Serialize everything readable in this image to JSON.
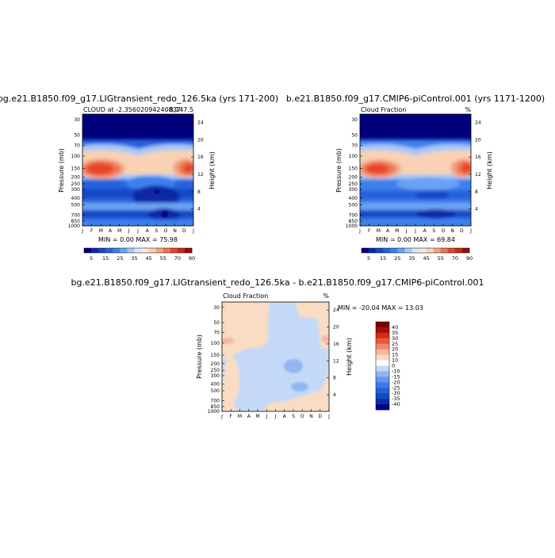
{
  "colors": {
    "scale": [
      "#00007d",
      "#0d2aa6",
      "#1648c7",
      "#2662de",
      "#3d80ed",
      "#6aa2f4",
      "#a7c8f7",
      "#d9e7fa",
      "#f6ecdc",
      "#f8d2b4",
      "#f4a682",
      "#ef7454",
      "#e5452b",
      "#cc2714",
      "#990c0c"
    ],
    "diff_scale": [
      "#00008b",
      "#0a2fa5",
      "#1448c2",
      "#2561d8",
      "#3d7ae8",
      "#6396f0",
      "#93b6f3",
      "#c4d9f7",
      "#ffffff",
      "#f8dcc4",
      "#f6b7a0",
      "#f18a6b",
      "#ea5a3a",
      "#d92c12",
      "#a80b0b",
      "#7a0000"
    ]
  },
  "chart_data": [
    {
      "type": "heatmap",
      "title": "bg.e21.B1850.f09_g17.LIGtransient_redo_126.5ka (yrs 171-200)",
      "subtitle_left": "CLOUD at -2.35602094240837",
      "subtitle_right": "8,147.5",
      "stats": "MIN =    0.00 MAX =   75.98",
      "x_ticks": [
        "J",
        "F",
        "M",
        "A",
        "M",
        "J",
        "J",
        "A",
        "S",
        "O",
        "N",
        "D",
        "J"
      ],
      "y_ticks": [
        "30",
        "50",
        "70",
        "100",
        "150",
        "200",
        "250",
        "300",
        "400",
        "500",
        "700",
        "850",
        "1000"
      ],
      "y2_ticks": [
        "24",
        "20",
        "16",
        "12",
        "8",
        "4"
      ],
      "ylabel": "Pressure (mb)",
      "y2label": "Height (km)",
      "colorbar_labels": [
        "5",
        "15",
        "25",
        "35",
        "45",
        "55",
        "70",
        "90"
      ]
    },
    {
      "type": "heatmap",
      "title": "b.e21.B1850.f09_g17.CMIP6-piControl.001 (yrs 1171-1200)",
      "subtitle_left": "Cloud Fraction",
      "subtitle_right": "%",
      "stats": "MIN =    0.00 MAX =   69.84",
      "x_ticks": [
        "J",
        "F",
        "M",
        "A",
        "M",
        "J",
        "J",
        "A",
        "S",
        "O",
        "N",
        "D",
        "J"
      ],
      "y_ticks": [
        "30",
        "50",
        "70",
        "100",
        "150",
        "200",
        "250",
        "300",
        "400",
        "500",
        "700",
        "850",
        "1000"
      ],
      "y2_ticks": [
        "24",
        "20",
        "16",
        "12",
        "8",
        "4"
      ],
      "ylabel": "Pressure (mb)",
      "y2label": "Height (km)",
      "colorbar_labels": [
        "5",
        "15",
        "25",
        "35",
        "45",
        "55",
        "70",
        "90"
      ]
    },
    {
      "type": "heatmap",
      "title": "bg.e21.B1850.f09_g17.LIGtransient_redo_126.5ka  -  b.e21.B1850.f09_g17.CMIP6-piControl.001",
      "subtitle_left": "Cloud Fraction",
      "subtitle_right": "%",
      "stats": "MIN = -20.04 MAX =   13.03",
      "x_ticks": [
        "J",
        "F",
        "M",
        "A",
        "M",
        "J",
        "J",
        "A",
        "S",
        "O",
        "N",
        "D",
        "J"
      ],
      "y_ticks": [
        "30",
        "50",
        "70",
        "100",
        "150",
        "200",
        "250",
        "300",
        "400",
        "500",
        "700",
        "850",
        "1000"
      ],
      "y2_ticks": [
        "24",
        "20",
        "16",
        "12",
        "8",
        "4"
      ],
      "ylabel": "Pressure (mb)",
      "y2label": "Height (km)",
      "colorbar_labels": [
        "40",
        "35",
        "30",
        "25",
        "20",
        "15",
        "10",
        "0",
        "-10",
        "-15",
        "-20",
        "-25",
        "-30",
        "-35",
        "-40"
      ]
    }
  ]
}
